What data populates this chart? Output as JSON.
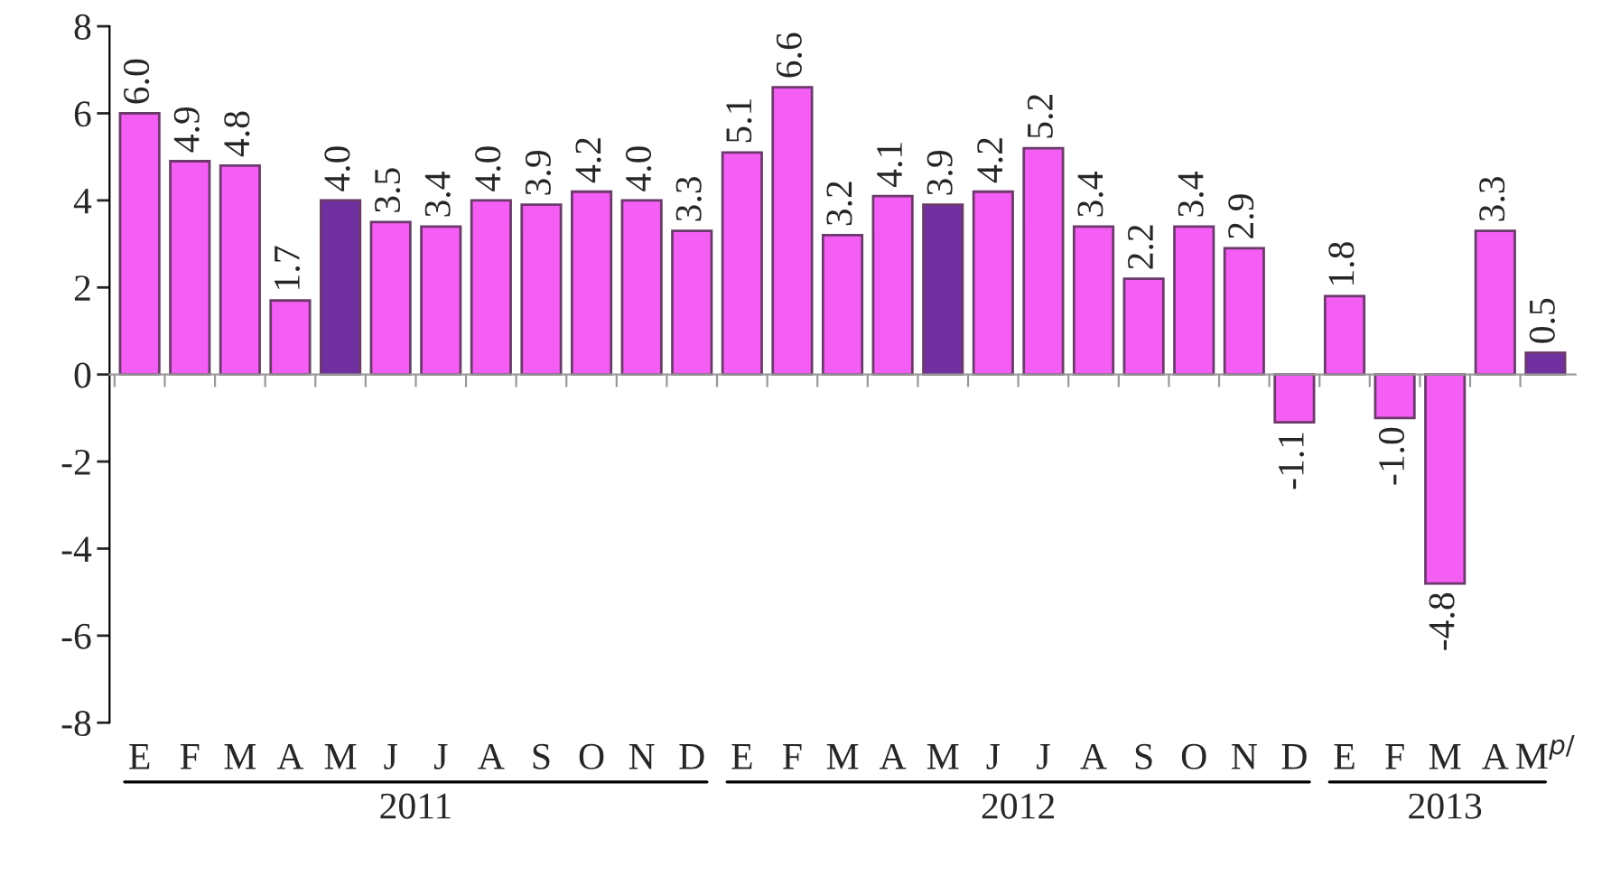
{
  "chart_data": {
    "type": "bar",
    "categories": [
      "E",
      "F",
      "M",
      "A",
      "M",
      "J",
      "J",
      "A",
      "S",
      "O",
      "N",
      "D",
      "E",
      "F",
      "M",
      "A",
      "M",
      "J",
      "J",
      "A",
      "S",
      "O",
      "N",
      "D",
      "E",
      "F",
      "M",
      "A",
      "M$^{p/}$"
    ],
    "values": [
      6.0,
      4.9,
      4.8,
      1.7,
      4.0,
      3.5,
      3.4,
      4.0,
      3.9,
      4.2,
      4.0,
      3.3,
      5.1,
      6.6,
      3.2,
      4.1,
      3.9,
      4.2,
      5.2,
      3.4,
      2.2,
      3.4,
      2.9,
      -1.1,
      1.8,
      -1.0,
      -4.8,
      3.3,
      0.5
    ],
    "colors": [
      "#f55ef5",
      "#f55ef5",
      "#f55ef5",
      "#f55ef5",
      "#7030a0",
      "#f55ef5",
      "#f55ef5",
      "#f55ef5",
      "#f55ef5",
      "#f55ef5",
      "#f55ef5",
      "#f55ef5",
      "#f55ef5",
      "#f55ef5",
      "#f55ef5",
      "#f55ef5",
      "#7030a0",
      "#f55ef5",
      "#f55ef5",
      "#f55ef5",
      "#f55ef5",
      "#f55ef5",
      "#f55ef5",
      "#f55ef5",
      "#f55ef5",
      "#f55ef5",
      "#f55ef5",
      "#f55ef5",
      "#7030a0"
    ],
    "ylim": [
      -8,
      8
    ],
    "yticks": [
      -8,
      -6,
      -4,
      -2,
      0,
      2,
      4,
      6,
      8
    ],
    "value_labels": [
      "6.0",
      "4.9",
      "4.8",
      "1.7",
      "4.0",
      "3.5",
      "3.4",
      "4.0",
      "3.9",
      "4.2",
      "4.0",
      "3.3",
      "5.1",
      "6.6",
      "3.2",
      "4.1",
      "3.9",
      "4.2",
      "5.2",
      "3.4",
      "2.2",
      "3.4",
      "2.9",
      "-1.1",
      "1.8",
      "-1.0",
      "-4.8",
      "3.3",
      "0.5"
    ],
    "legend": false,
    "annotations": [
      "2011",
      "2012",
      "2013"
    ]
  }
}
